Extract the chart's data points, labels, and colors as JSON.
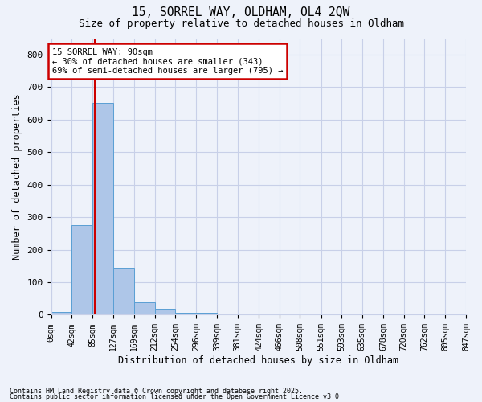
{
  "title1": "15, SORREL WAY, OLDHAM, OL4 2QW",
  "title2": "Size of property relative to detached houses in Oldham",
  "xlabel": "Distribution of detached houses by size in Oldham",
  "ylabel": "Number of detached properties",
  "bin_edges": [
    0,
    42,
    85,
    127,
    169,
    212,
    254,
    296,
    339,
    381,
    424,
    466,
    508,
    551,
    593,
    635,
    678,
    720,
    762,
    805,
    847
  ],
  "bar_values": [
    8,
    275,
    650,
    145,
    38,
    18,
    5,
    5,
    3,
    2,
    2,
    1,
    1,
    1,
    0,
    1,
    0,
    0,
    0,
    1
  ],
  "bar_color": "#aec6e8",
  "bar_edge_color": "#5a9fd4",
  "property_size": 90,
  "annotation_text": "15 SORREL WAY: 90sqm\n← 30% of detached houses are smaller (343)\n69% of semi-detached houses are larger (795) →",
  "annotation_box_color": "#ffffff",
  "annotation_box_edge": "#cc0000",
  "vline_color": "#cc0000",
  "ylim": [
    0,
    850
  ],
  "yticks": [
    0,
    100,
    200,
    300,
    400,
    500,
    600,
    700,
    800
  ],
  "footer1": "Contains HM Land Registry data © Crown copyright and database right 2025.",
  "footer2": "Contains public sector information licensed under the Open Government Licence v3.0.",
  "bg_color": "#eef2fa",
  "grid_color": "#c8d0e8"
}
